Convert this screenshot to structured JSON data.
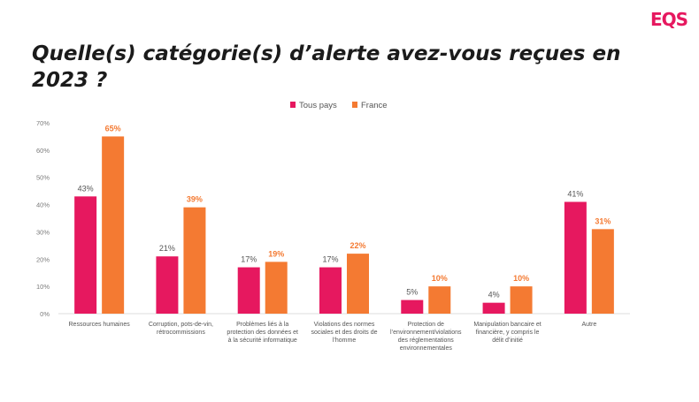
{
  "header": {
    "logo_text": "EQS",
    "title": "Quelle(s) catégorie(s) d’alerte avez-vous reçues en 2023 ?"
  },
  "colors": {
    "series_1": "#e6185f",
    "series_2": "#f47a32",
    "axis_text": "#7a7a7a",
    "grid": "#dedede"
  },
  "chart_data": {
    "type": "bar",
    "legend_position": "top-center",
    "grid": false,
    "ylim": [
      0,
      70
    ],
    "yticks": [
      "0%",
      "10%",
      "20%",
      "30%",
      "40%",
      "50%",
      "60%",
      "70%"
    ],
    "ytick_values": [
      0,
      10,
      20,
      30,
      40,
      50,
      60,
      70
    ],
    "categories": [
      [
        "Ressources humaines"
      ],
      [
        "Corruption, pots-de-vin,",
        "rétrocommissions"
      ],
      [
        "Problèmes liés à la",
        "protection des données et",
        "à la sécurité informatique"
      ],
      [
        "Violations des normes",
        "sociales et des droits de",
        "l’homme"
      ],
      [
        "Protection de",
        "l’environnement/violations",
        "des réglementations",
        "environnementales"
      ],
      [
        "Manipulation bancaire et",
        "financière, y compris le",
        "délit d’initié"
      ],
      [
        "Autre"
      ]
    ],
    "series": [
      {
        "name": "Tous pays",
        "values": [
          43,
          21,
          17,
          17,
          5,
          4,
          41
        ],
        "labels": [
          "43%",
          "21%",
          "17%",
          "17%",
          "5%",
          "4%",
          "41%"
        ]
      },
      {
        "name": "France",
        "values": [
          65,
          39,
          19,
          22,
          10,
          10,
          31
        ],
        "labels": [
          "65%",
          "39%",
          "19%",
          "22%",
          "10%",
          "10%",
          "31%"
        ]
      }
    ]
  }
}
